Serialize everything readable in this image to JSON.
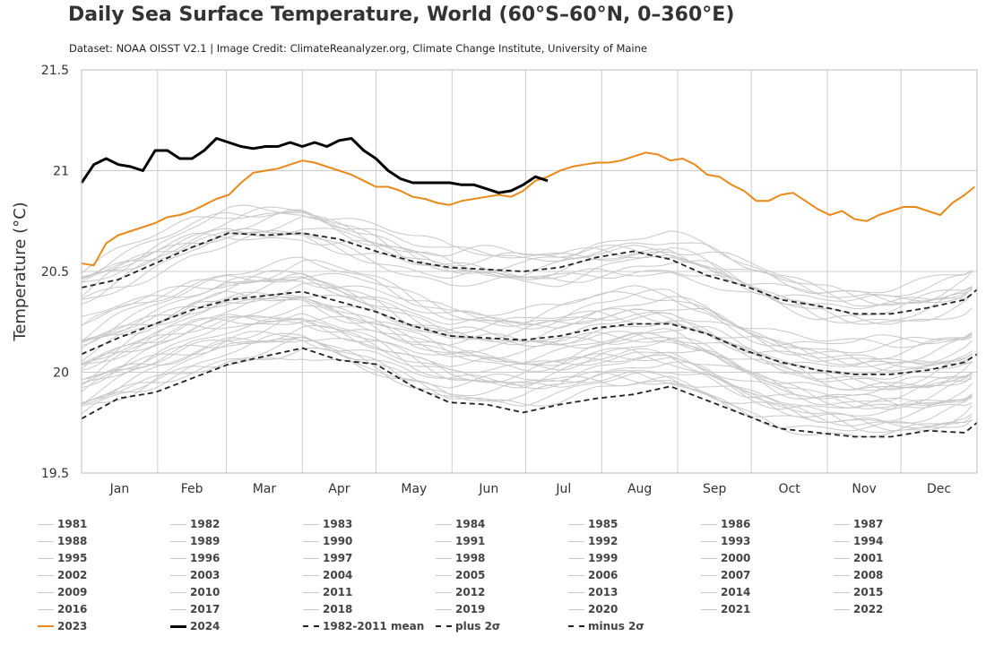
{
  "chart_data": {
    "type": "line",
    "title": "Daily Sea Surface Temperature, World (60°S–60°N, 0–360°E)",
    "subtitle": "Dataset: NOAA OISST V2.1 | Image Credit: ClimateReanalyzer.org, Climate Change Institute, University of Maine",
    "ylabel": "Temperature (°C)",
    "xlabel": "",
    "ylim": [
      19.5,
      21.5
    ],
    "yticks": [
      "21.5",
      "21",
      "20.5",
      "20",
      "19.5"
    ],
    "xlim": [
      1,
      366
    ],
    "x_unit": "day of year",
    "month_labels": [
      "Jan",
      "Feb",
      "Mar",
      "Apr",
      "May",
      "Jun",
      "Jul",
      "Aug",
      "Sep",
      "Oct",
      "Nov",
      "Dec"
    ],
    "grid": true,
    "legend_position": "bottom",
    "colors": {
      "y2023": "#e8891a",
      "y2024": "#000000",
      "historical": "#c8c8c8",
      "mean": "#222222",
      "grid": "#cccccc"
    },
    "series": [
      {
        "name": "2024",
        "style": "solid-bold",
        "color": "#000000",
        "x": [
          1,
          6,
          11,
          16,
          21,
          26,
          31,
          36,
          41,
          46,
          51,
          56,
          61,
          66,
          71,
          76,
          81,
          86,
          91,
          96,
          101,
          106,
          111,
          116,
          121,
          126,
          131,
          136,
          141,
          146,
          151,
          156,
          161,
          166,
          171,
          176,
          181,
          186,
          191
        ],
        "y": [
          20.94,
          21.03,
          21.06,
          21.03,
          21.02,
          21.0,
          21.1,
          21.1,
          21.06,
          21.06,
          21.1,
          21.16,
          21.14,
          21.12,
          21.11,
          21.12,
          21.12,
          21.14,
          21.12,
          21.14,
          21.12,
          21.15,
          21.16,
          21.1,
          21.06,
          21.0,
          20.96,
          20.94,
          20.94,
          20.94,
          20.94,
          20.93,
          20.93,
          20.91,
          20.89,
          20.9,
          20.93,
          20.97,
          20.95
        ]
      },
      {
        "name": "2023",
        "style": "solid",
        "color": "#e8891a",
        "x": [
          1,
          6,
          11,
          16,
          21,
          26,
          31,
          36,
          41,
          46,
          51,
          56,
          61,
          66,
          71,
          76,
          81,
          86,
          91,
          96,
          101,
          106,
          111,
          116,
          121,
          126,
          131,
          136,
          141,
          146,
          151,
          156,
          161,
          166,
          171,
          176,
          181,
          186,
          191,
          196,
          201,
          206,
          211,
          216,
          221,
          226,
          231,
          236,
          241,
          246,
          251,
          256,
          261,
          266,
          271,
          276,
          281,
          286,
          291,
          296,
          301,
          306,
          311,
          316,
          321,
          326,
          331,
          336,
          341,
          346,
          351,
          356,
          361,
          365
        ],
        "y": [
          20.54,
          20.53,
          20.64,
          20.68,
          20.7,
          20.72,
          20.74,
          20.77,
          20.78,
          20.8,
          20.83,
          20.86,
          20.88,
          20.94,
          20.99,
          21.0,
          21.01,
          21.03,
          21.05,
          21.04,
          21.02,
          21.0,
          20.98,
          20.95,
          20.92,
          20.92,
          20.9,
          20.87,
          20.86,
          20.84,
          20.83,
          20.85,
          20.86,
          20.87,
          20.88,
          20.87,
          20.9,
          20.95,
          20.97,
          21.0,
          21.02,
          21.03,
          21.04,
          21.04,
          21.05,
          21.07,
          21.09,
          21.08,
          21.05,
          21.06,
          21.03,
          20.98,
          20.97,
          20.93,
          20.9,
          20.85,
          20.85,
          20.88,
          20.89,
          20.85,
          20.81,
          20.78,
          20.8,
          20.76,
          20.75,
          20.78,
          20.8,
          20.82,
          20.82,
          20.8,
          20.78,
          20.84,
          20.88,
          20.92
        ]
      },
      {
        "name": "plus 2σ",
        "style": "dashed",
        "color": "#222222",
        "x": [
          1,
          16,
          31,
          46,
          61,
          76,
          91,
          106,
          121,
          136,
          151,
          166,
          181,
          196,
          211,
          226,
          241,
          256,
          271,
          286,
          301,
          316,
          331,
          346,
          361,
          366
        ],
        "y": [
          20.42,
          20.46,
          20.54,
          20.62,
          20.69,
          20.68,
          20.69,
          20.66,
          20.6,
          20.55,
          20.52,
          20.51,
          20.5,
          20.52,
          20.57,
          20.6,
          20.56,
          20.48,
          20.43,
          20.36,
          20.33,
          20.29,
          20.29,
          20.32,
          20.36,
          20.41
        ]
      },
      {
        "name": "1982-2011 mean",
        "style": "dashed",
        "color": "#222222",
        "x": [
          1,
          16,
          31,
          46,
          61,
          76,
          91,
          106,
          121,
          136,
          151,
          166,
          181,
          196,
          211,
          226,
          241,
          256,
          271,
          286,
          301,
          316,
          331,
          346,
          361,
          366
        ],
        "y": [
          20.09,
          20.17,
          20.24,
          20.31,
          20.36,
          20.38,
          20.4,
          20.35,
          20.3,
          20.23,
          20.18,
          20.17,
          20.16,
          20.18,
          20.22,
          20.24,
          20.24,
          20.19,
          20.11,
          20.05,
          20.01,
          19.99,
          19.99,
          20.01,
          20.05,
          20.09
        ]
      },
      {
        "name": "minus 2σ",
        "style": "dashed",
        "color": "#222222",
        "x": [
          1,
          16,
          31,
          46,
          61,
          76,
          91,
          106,
          121,
          136,
          151,
          166,
          181,
          196,
          211,
          226,
          241,
          256,
          271,
          286,
          301,
          316,
          331,
          346,
          361,
          366
        ],
        "y": [
          19.77,
          19.87,
          19.9,
          19.97,
          20.04,
          20.08,
          20.12,
          20.06,
          20.04,
          19.93,
          19.85,
          19.84,
          19.8,
          19.84,
          19.87,
          19.89,
          19.93,
          19.86,
          19.79,
          19.72,
          19.7,
          19.68,
          19.68,
          19.71,
          19.7,
          19.75
        ]
      }
    ],
    "legend": [
      {
        "label": "1981",
        "style": "historical"
      },
      {
        "label": "1982",
        "style": "historical"
      },
      {
        "label": "1983",
        "style": "historical"
      },
      {
        "label": "1984",
        "style": "historical"
      },
      {
        "label": "1985",
        "style": "historical"
      },
      {
        "label": "1986",
        "style": "historical"
      },
      {
        "label": "1987",
        "style": "historical"
      },
      {
        "label": "1988",
        "style": "historical"
      },
      {
        "label": "1989",
        "style": "historical"
      },
      {
        "label": "1990",
        "style": "historical"
      },
      {
        "label": "1991",
        "style": "historical"
      },
      {
        "label": "1992",
        "style": "historical"
      },
      {
        "label": "1993",
        "style": "historical"
      },
      {
        "label": "1994",
        "style": "historical"
      },
      {
        "label": "1995",
        "style": "historical"
      },
      {
        "label": "1996",
        "style": "historical"
      },
      {
        "label": "1997",
        "style": "historical"
      },
      {
        "label": "1998",
        "style": "historical"
      },
      {
        "label": "1999",
        "style": "historical"
      },
      {
        "label": "2000",
        "style": "historical"
      },
      {
        "label": "2001",
        "style": "historical"
      },
      {
        "label": "2002",
        "style": "historical"
      },
      {
        "label": "2003",
        "style": "historical"
      },
      {
        "label": "2004",
        "style": "historical"
      },
      {
        "label": "2005",
        "style": "historical"
      },
      {
        "label": "2006",
        "style": "historical"
      },
      {
        "label": "2007",
        "style": "historical"
      },
      {
        "label": "2008",
        "style": "historical"
      },
      {
        "label": "2009",
        "style": "historical"
      },
      {
        "label": "2010",
        "style": "historical"
      },
      {
        "label": "2011",
        "style": "historical"
      },
      {
        "label": "2012",
        "style": "historical"
      },
      {
        "label": "2013",
        "style": "historical"
      },
      {
        "label": "2014",
        "style": "historical"
      },
      {
        "label": "2015",
        "style": "historical"
      },
      {
        "label": "2016",
        "style": "historical"
      },
      {
        "label": "2017",
        "style": "historical"
      },
      {
        "label": "2018",
        "style": "historical"
      },
      {
        "label": "2019",
        "style": "historical"
      },
      {
        "label": "2020",
        "style": "historical"
      },
      {
        "label": "2021",
        "style": "historical"
      },
      {
        "label": "2022",
        "style": "historical"
      },
      {
        "label": "2023",
        "style": "y2023"
      },
      {
        "label": "2024",
        "style": "y2024"
      },
      {
        "label": "1982-2011 mean",
        "style": "mean"
      },
      {
        "label": "plus 2σ",
        "style": "plus"
      },
      {
        "label": "minus 2σ",
        "style": "minus"
      }
    ]
  }
}
